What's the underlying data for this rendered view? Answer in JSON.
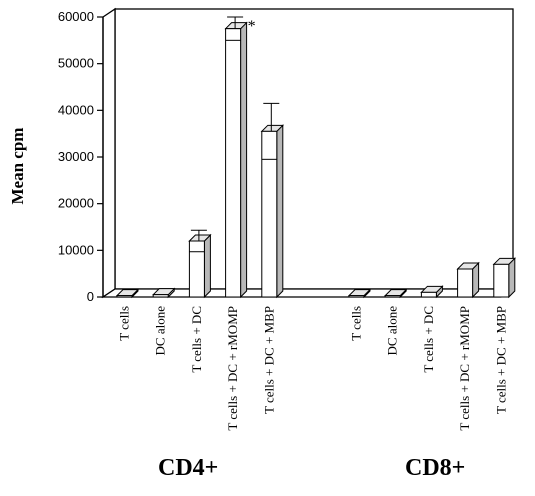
{
  "chart_data": {
    "type": "bar",
    "ylabel": "Mean cpm",
    "ylim": [
      0,
      60000
    ],
    "yticks": [
      0,
      10000,
      20000,
      30000,
      40000,
      50000,
      60000
    ],
    "ytick_labels": [
      "0",
      "10000",
      "20000",
      "30000",
      "40000",
      "50000",
      "60000"
    ],
    "groups": [
      {
        "name": "CD4+",
        "categories": [
          "T cells",
          "DC alone",
          "T cells + DC",
          "T cells + DC + rMOMP",
          "T cells + DC + MBP"
        ],
        "values": [
          300,
          500,
          12000,
          57500,
          35500
        ],
        "errors": [
          null,
          null,
          2300,
          2500,
          6000
        ]
      },
      {
        "name": "CD8+",
        "categories": [
          "T cells",
          "DC alone",
          "T cells + DC",
          "T cells + DC + rMOMP",
          "T cells + DC + MBP"
        ],
        "values": [
          300,
          300,
          1000,
          6000,
          7000
        ],
        "errors": [
          null,
          null,
          null,
          null,
          null
        ]
      }
    ],
    "annotations": [
      {
        "text": "*",
        "group": 0,
        "category": 3
      }
    ],
    "grid": false,
    "legend": "none"
  }
}
